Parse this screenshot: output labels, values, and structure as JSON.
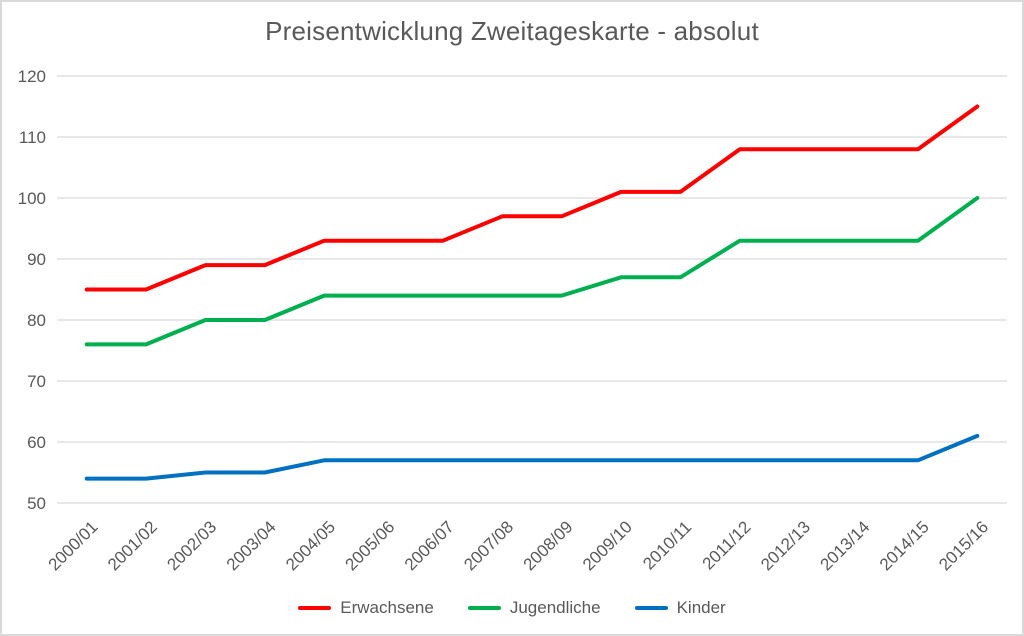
{
  "frame": {
    "background": "#FFFFFF",
    "border_color": "#D9D9D9"
  },
  "chart_data": {
    "type": "line",
    "title": "Preisentwicklung Zweitageskarte - absolut",
    "title_color": "#595959",
    "axis_text_color": "#595959",
    "gridline_color": "#D9D9D9",
    "grid": true,
    "legend_position": "bottom",
    "xlabel": "",
    "ylabel": "",
    "ylim": [
      50,
      120
    ],
    "yticks": [
      50,
      60,
      70,
      80,
      90,
      100,
      110,
      120
    ],
    "categories": [
      "2000/01",
      "2001/02",
      "2002/03",
      "2003/04",
      "2004/05",
      "2005/06",
      "2006/07",
      "2007/08",
      "2008/09",
      "2009/10",
      "2010/11",
      "2011/12",
      "2012/13",
      "2013/14",
      "2014/15",
      "2015/16"
    ],
    "series": [
      {
        "name": "Erwachsene",
        "color": "#FF0000",
        "values": [
          85,
          85,
          89,
          89,
          93,
          93,
          93,
          97,
          97,
          101,
          101,
          108,
          108,
          108,
          108,
          115
        ]
      },
      {
        "name": "Jugendliche",
        "color": "#00B050",
        "values": [
          76,
          76,
          80,
          80,
          84,
          84,
          84,
          84,
          84,
          87,
          87,
          93,
          93,
          93,
          93,
          100
        ]
      },
      {
        "name": "Kinder",
        "color": "#0070C0",
        "values": [
          54,
          54,
          55,
          55,
          57,
          57,
          57,
          57,
          57,
          57,
          57,
          57,
          57,
          57,
          57,
          61
        ]
      }
    ]
  }
}
